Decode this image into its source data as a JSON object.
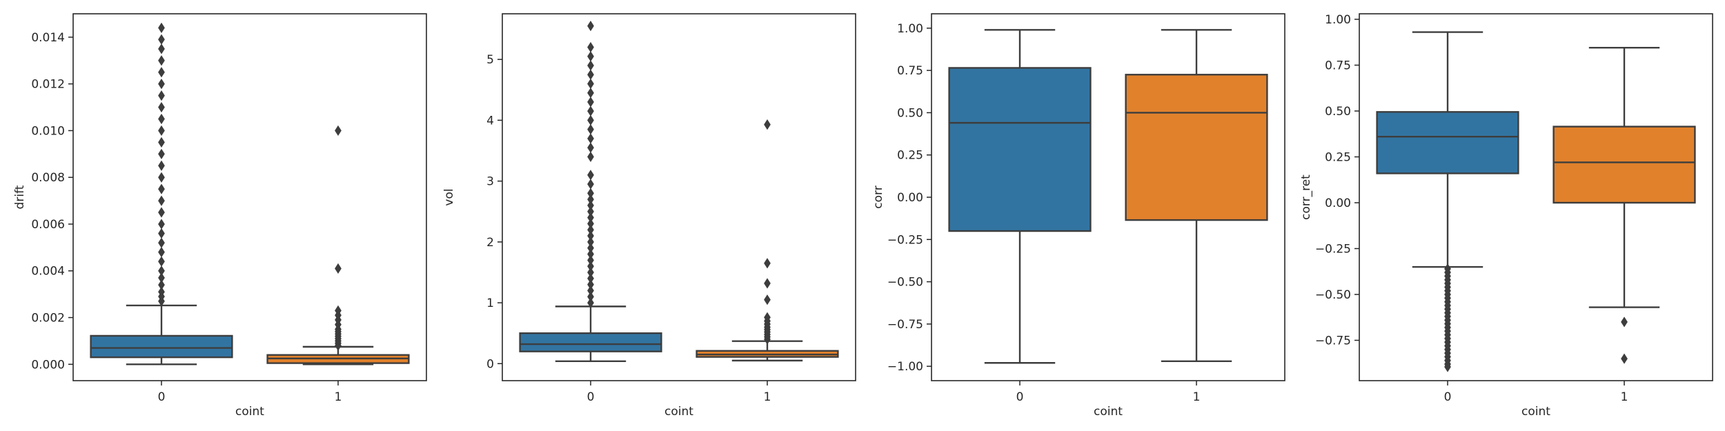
{
  "chart_data": [
    {
      "type": "box",
      "xlabel": "coint",
      "ylabel": "drift",
      "categories": [
        "0",
        "1"
      ],
      "colors": [
        "#3274a1",
        "#e1812c"
      ],
      "ylim": [
        -0.0007,
        0.015
      ],
      "yticks": [
        0.0,
        0.002,
        0.004,
        0.006,
        0.008,
        0.01,
        0.012,
        0.014
      ],
      "ytick_labels": [
        "0.000",
        "0.002",
        "0.004",
        "0.006",
        "0.008",
        "0.010",
        "0.012",
        "0.014"
      ],
      "boxes": [
        {
          "whislo": 0.0,
          "q1": 0.0003,
          "med": 0.0007,
          "q3": 0.00122,
          "whishi": 0.00252,
          "outliers": [
            0.0027,
            0.0029,
            0.0031,
            0.0034,
            0.0037,
            0.004,
            0.0044,
            0.0048,
            0.0052,
            0.0056,
            0.006,
            0.0065,
            0.007,
            0.0075,
            0.008,
            0.0085,
            0.009,
            0.0095,
            0.01,
            0.0105,
            0.011,
            0.0115,
            0.012,
            0.0125,
            0.013,
            0.0135,
            0.0139,
            0.0144
          ]
        },
        {
          "whislo": 0.0,
          "q1": 5e-05,
          "med": 0.00025,
          "q3": 0.0004,
          "whishi": 0.00075,
          "outliers": [
            0.0008,
            0.0009,
            0.001,
            0.0011,
            0.0012,
            0.0013,
            0.0014,
            0.0015,
            0.0017,
            0.0019,
            0.0021,
            0.0023,
            0.0041,
            0.01
          ]
        }
      ]
    },
    {
      "type": "box",
      "xlabel": "coint",
      "ylabel": "vol",
      "categories": [
        "0",
        "1"
      ],
      "colors": [
        "#3274a1",
        "#e1812c"
      ],
      "ylim": [
        -0.28,
        5.75
      ],
      "yticks": [
        0,
        1,
        2,
        3,
        4,
        5
      ],
      "ytick_labels": [
        "0",
        "1",
        "2",
        "3",
        "4",
        "5"
      ],
      "boxes": [
        {
          "whislo": 0.04,
          "q1": 0.2,
          "med": 0.32,
          "q3": 0.5,
          "whishi": 0.94,
          "outliers": [
            1.0,
            1.1,
            1.2,
            1.3,
            1.4,
            1.5,
            1.6,
            1.7,
            1.8,
            1.9,
            2.0,
            2.1,
            2.2,
            2.3,
            2.4,
            2.5,
            2.6,
            2.7,
            2.8,
            2.95,
            3.1,
            3.4,
            3.55,
            3.7,
            3.85,
            4.0,
            4.15,
            4.3,
            4.45,
            4.6,
            4.75,
            4.9,
            5.05,
            5.2,
            5.55
          ]
        },
        {
          "whislo": 0.05,
          "q1": 0.11,
          "med": 0.15,
          "q3": 0.21,
          "whishi": 0.37,
          "outliers": [
            0.4,
            0.44,
            0.48,
            0.52,
            0.56,
            0.6,
            0.65,
            0.7,
            0.76,
            1.05,
            1.32,
            1.65,
            3.93
          ]
        }
      ]
    },
    {
      "type": "box",
      "xlabel": "coint",
      "ylabel": "corr",
      "categories": [
        "0",
        "1"
      ],
      "colors": [
        "#3274a1",
        "#e1812c"
      ],
      "ylim": [
        -1.085,
        1.085
      ],
      "yticks": [
        -1.0,
        -0.75,
        -0.5,
        -0.25,
        0.0,
        0.25,
        0.5,
        0.75,
        1.0
      ],
      "ytick_labels": [
        "−1.00",
        "−0.75",
        "−0.50",
        "−0.25",
        "0.00",
        "0.25",
        "0.50",
        "0.75",
        "1.00"
      ],
      "boxes": [
        {
          "whislo": -0.98,
          "q1": -0.2,
          "med": 0.44,
          "q3": 0.765,
          "whishi": 0.99,
          "outliers": []
        },
        {
          "whislo": -0.97,
          "q1": -0.135,
          "med": 0.5,
          "q3": 0.725,
          "whishi": 0.99,
          "outliers": []
        }
      ]
    },
    {
      "type": "box",
      "xlabel": "coint",
      "ylabel": "corr_ret",
      "categories": [
        "0",
        "1"
      ],
      "colors": [
        "#3274a1",
        "#e1812c"
      ],
      "ylim": [
        -0.97,
        1.03
      ],
      "yticks": [
        -0.75,
        -0.5,
        -0.25,
        0.0,
        0.25,
        0.5,
        0.75,
        1.0
      ],
      "ytick_labels": [
        "−0.75",
        "−0.50",
        "−0.25",
        "0.00",
        "0.25",
        "0.50",
        "0.75",
        "1.00"
      ],
      "boxes": [
        {
          "whislo": -0.35,
          "q1": 0.16,
          "med": 0.36,
          "q3": 0.495,
          "whishi": 0.93,
          "outliers": [
            -0.36,
            -0.38,
            -0.4,
            -0.42,
            -0.44,
            -0.46,
            -0.48,
            -0.5,
            -0.52,
            -0.54,
            -0.56,
            -0.58,
            -0.6,
            -0.62,
            -0.64,
            -0.66,
            -0.68,
            -0.7,
            -0.72,
            -0.74,
            -0.76,
            -0.78,
            -0.8,
            -0.82,
            -0.84,
            -0.86,
            -0.88,
            -0.895
          ]
        },
        {
          "whislo": -0.57,
          "q1": 0.0,
          "med": 0.22,
          "q3": 0.415,
          "whishi": 0.845,
          "outliers": [
            -0.65,
            -0.85
          ]
        }
      ]
    }
  ]
}
